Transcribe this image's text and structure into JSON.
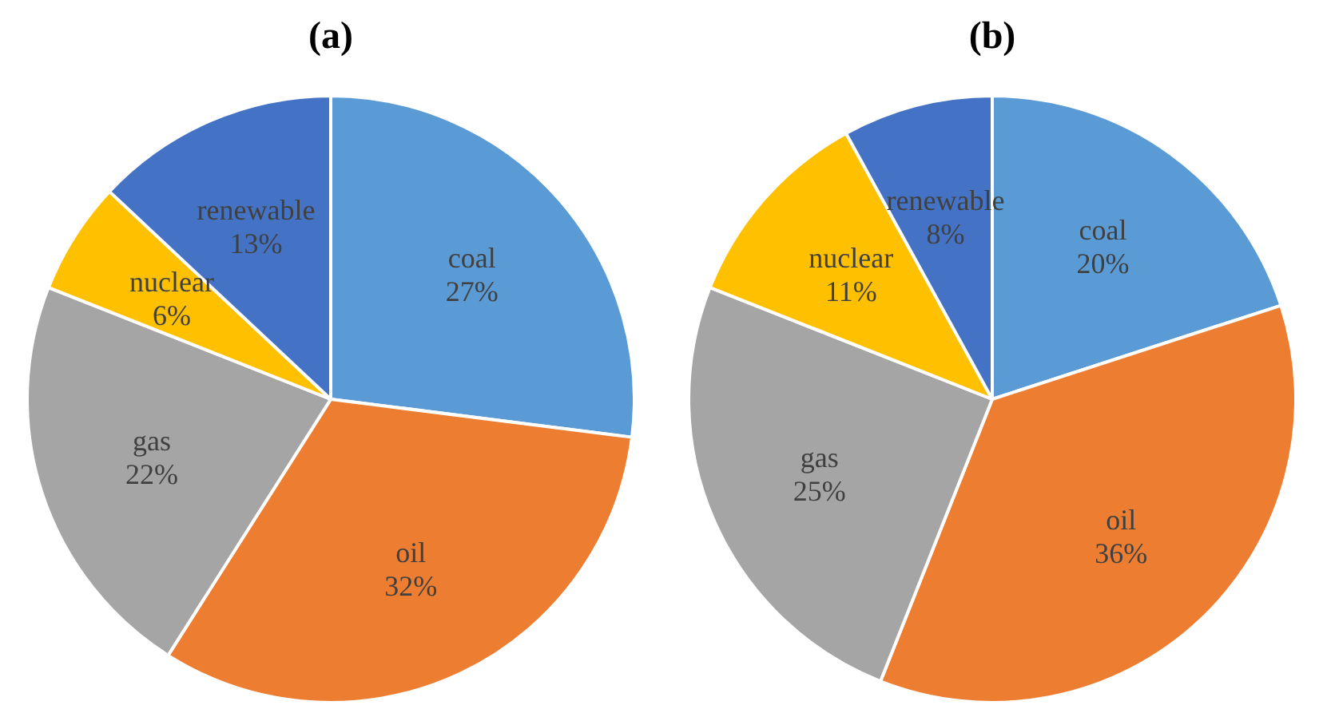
{
  "chart_data": [
    {
      "type": "pie",
      "title": "(a)",
      "categories": [
        "coal",
        "oil",
        "gas",
        "nuclear",
        "renewable"
      ],
      "values": [
        27,
        32,
        22,
        6,
        13
      ],
      "colors": [
        "#5b9bd5",
        "#ed7d31",
        "#a5a5a5",
        "#ffc000",
        "#4472c4"
      ],
      "value_labels": [
        "27%",
        "32%",
        "22%",
        "6%",
        "13%"
      ],
      "legend": false
    },
    {
      "type": "pie",
      "title": "(b)",
      "categories": [
        "coal",
        "oil",
        "gas",
        "nuclear",
        "renewable"
      ],
      "values": [
        20,
        36,
        25,
        11,
        8
      ],
      "colors": [
        "#5b9bd5",
        "#ed7d31",
        "#a5a5a5",
        "#ffc000",
        "#4472c4"
      ],
      "value_labels": [
        "20%",
        "36%",
        "25%",
        "11%",
        "8%"
      ],
      "legend": false
    }
  ]
}
